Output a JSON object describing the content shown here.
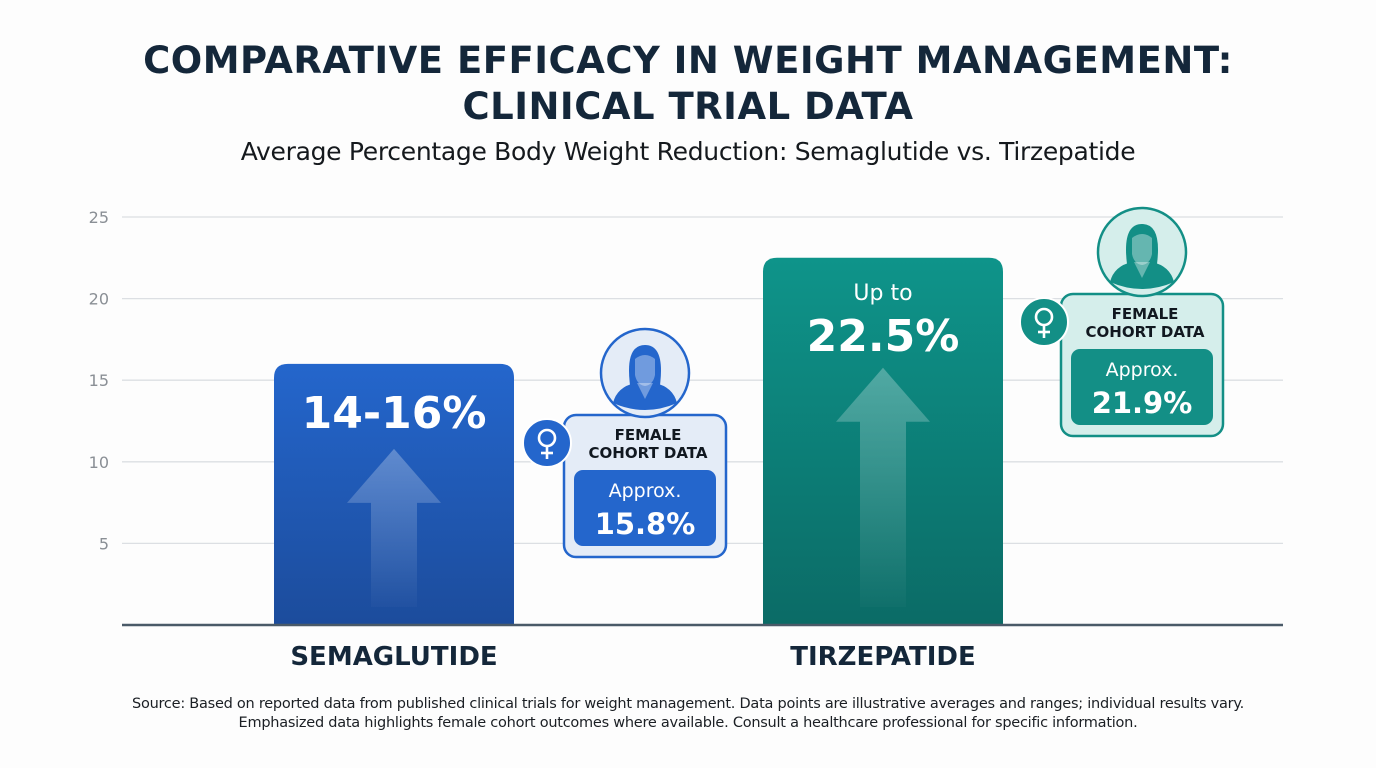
{
  "chart_data": {
    "type": "bar",
    "title": "COMPARATIVE EFFICACY IN WEIGHT MANAGEMENT: CLINICAL TRIAL DATA",
    "title_lines": [
      "COMPARATIVE EFFICACY IN WEIGHT MANAGEMENT:",
      "CLINICAL TRIAL DATA"
    ],
    "subtitle": "Average Percentage Body Weight Reduction: Semaglutide vs. Tirzepatide",
    "xlabel": "",
    "ylabel": "",
    "ylim": [
      0,
      25
    ],
    "yticks": [
      5,
      10,
      15,
      20,
      25
    ],
    "grid": true,
    "categories": [
      "SEMAGLUTIDE",
      "TIRZEPATIDE"
    ],
    "values": [
      16,
      22.5
    ],
    "bars": [
      {
        "category": "SEMAGLUTIDE",
        "value": 16,
        "range": [
          14,
          16
        ],
        "label_prefix": "",
        "label": "14-16%",
        "color_top": "#2466cc",
        "color_bottom": "#1c4c9c",
        "arrow_icon": "up-arrow-icon",
        "female_cohort": {
          "title_lines": [
            "FEMALE",
            "COHORT DATA"
          ],
          "approx_label": "Approx.",
          "value": 15.8,
          "value_label": "15.8%",
          "accent": "#2466cc",
          "card_bg": "#e4ecf7",
          "avatar_icon": "female-avatar-icon",
          "symbol_icon": "female-symbol-icon"
        }
      },
      {
        "category": "TIRZEPATIDE",
        "value": 22.5,
        "label_prefix": "Up to",
        "label": "22.5%",
        "color_top": "#0e948a",
        "color_bottom": "#0b6b66",
        "arrow_icon": "up-arrow-icon",
        "female_cohort": {
          "title_lines": [
            "FEMALE",
            "COHORT DATA"
          ],
          "approx_label": "Approx.",
          "value": 21.9,
          "value_label": "21.9%",
          "accent": "#138f86",
          "card_bg": "#d5eeeb",
          "avatar_icon": "female-avatar-icon",
          "symbol_icon": "female-symbol-icon"
        }
      }
    ],
    "source_lines": [
      "Source: Based on reported data from published clinical trials for weight management. Data points are illustrative averages and ranges; individual results vary.",
      "Emphasized data highlights female cohort outcomes where available. Consult a healthcare professional for specific information."
    ]
  }
}
